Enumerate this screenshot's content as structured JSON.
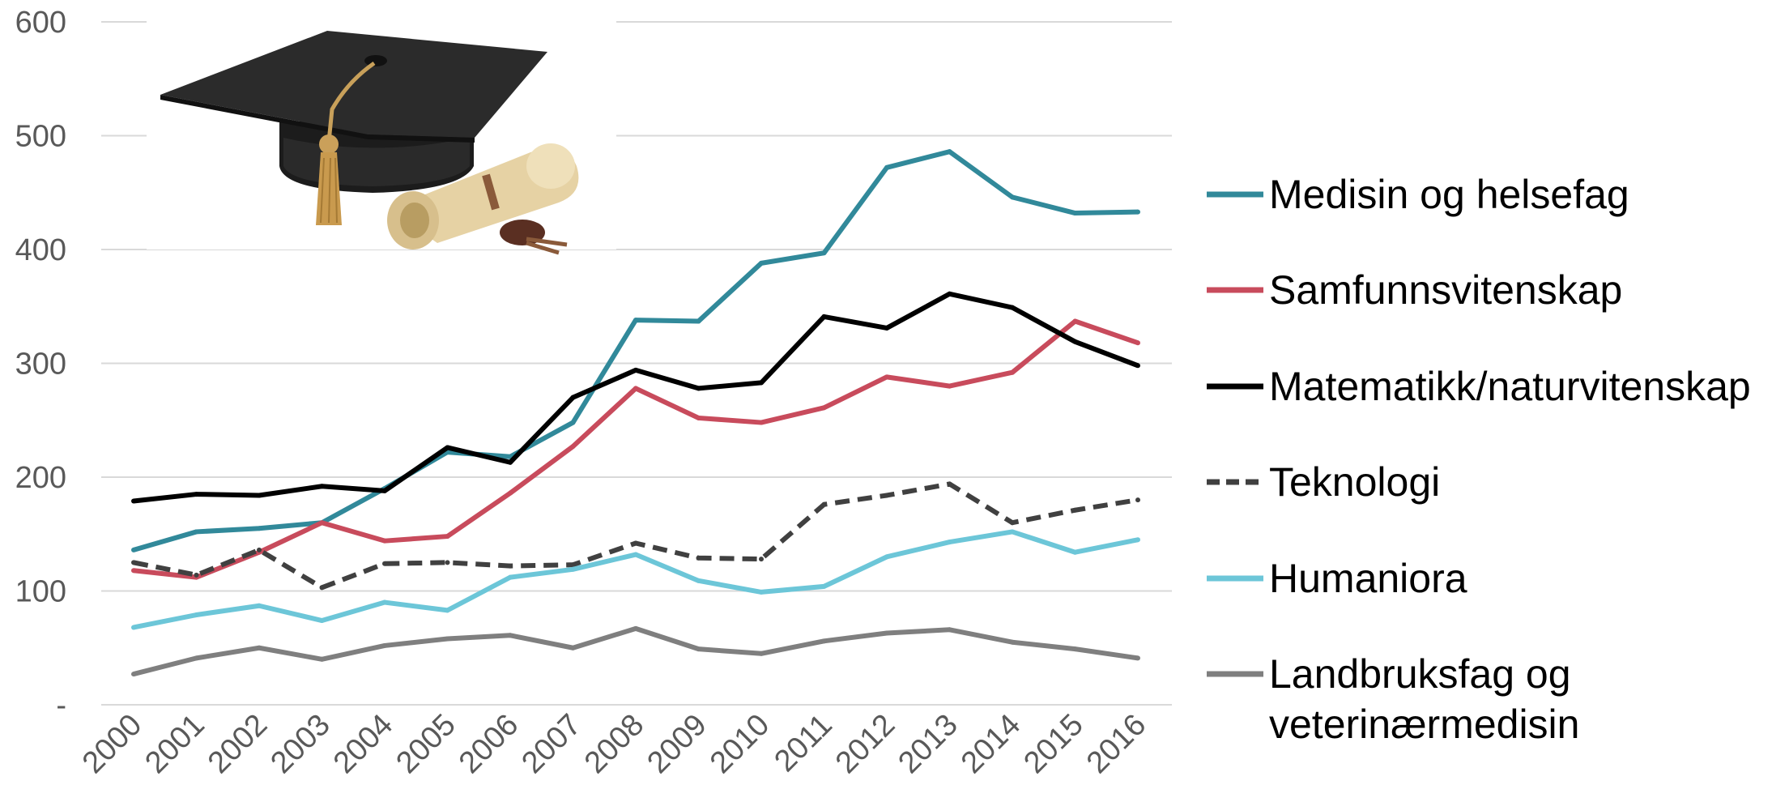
{
  "chart_data": {
    "type": "line",
    "categories": [
      "2000",
      "2001",
      "2002",
      "2003",
      "2004",
      "2005",
      "2006",
      "2007",
      "2008",
      "2009",
      "2010",
      "2011",
      "2012",
      "2013",
      "2014",
      "2015",
      "2016"
    ],
    "ylim": [
      0,
      600
    ],
    "yticks": [
      0,
      100,
      200,
      300,
      400,
      500,
      600
    ],
    "ytick_labels": [
      "-",
      "100",
      "200",
      "300",
      "400",
      "500",
      "600"
    ],
    "grid": true,
    "legend_position": "right",
    "series": [
      {
        "name": "Medisin og helsefag",
        "color": "#31899a",
        "dashed": false,
        "values": [
          136,
          152,
          155,
          160,
          190,
          222,
          218,
          248,
          338,
          337,
          388,
          397,
          472,
          486,
          446,
          432,
          433
        ]
      },
      {
        "name": "Samfunnsvitenskap",
        "color": "#c84b5c",
        "dashed": false,
        "values": [
          118,
          112,
          134,
          160,
          144,
          148,
          186,
          227,
          278,
          252,
          248,
          261,
          288,
          280,
          292,
          337,
          318
        ]
      },
      {
        "name": "Matematikk/naturvitenskap",
        "color": "#000000",
        "dashed": false,
        "values": [
          179,
          185,
          184,
          192,
          188,
          226,
          213,
          270,
          294,
          278,
          283,
          341,
          331,
          361,
          349,
          319,
          298
        ]
      },
      {
        "name": "Teknologi",
        "color": "#404040",
        "dashed": true,
        "values": [
          125,
          114,
          136,
          103,
          124,
          125,
          122,
          123,
          142,
          129,
          128,
          176,
          184,
          194,
          160,
          171,
          180
        ]
      },
      {
        "name": "Humaniora",
        "color": "#6cc6d8",
        "dashed": false,
        "values": [
          68,
          79,
          87,
          74,
          90,
          83,
          112,
          119,
          132,
          109,
          99,
          104,
          130,
          143,
          152,
          134,
          145
        ]
      },
      {
        "name": "Landbruksfag og veterinærmedisin",
        "name_lines": [
          "Landbruksfag og",
          "veterinærmedisin"
        ],
        "color": "#7f7f7f",
        "dashed": false,
        "values": [
          27,
          41,
          50,
          40,
          52,
          58,
          61,
          50,
          67,
          49,
          45,
          56,
          63,
          66,
          55,
          49,
          41
        ]
      }
    ]
  },
  "picture": {
    "icon": "graduation-cap-diploma-image"
  }
}
